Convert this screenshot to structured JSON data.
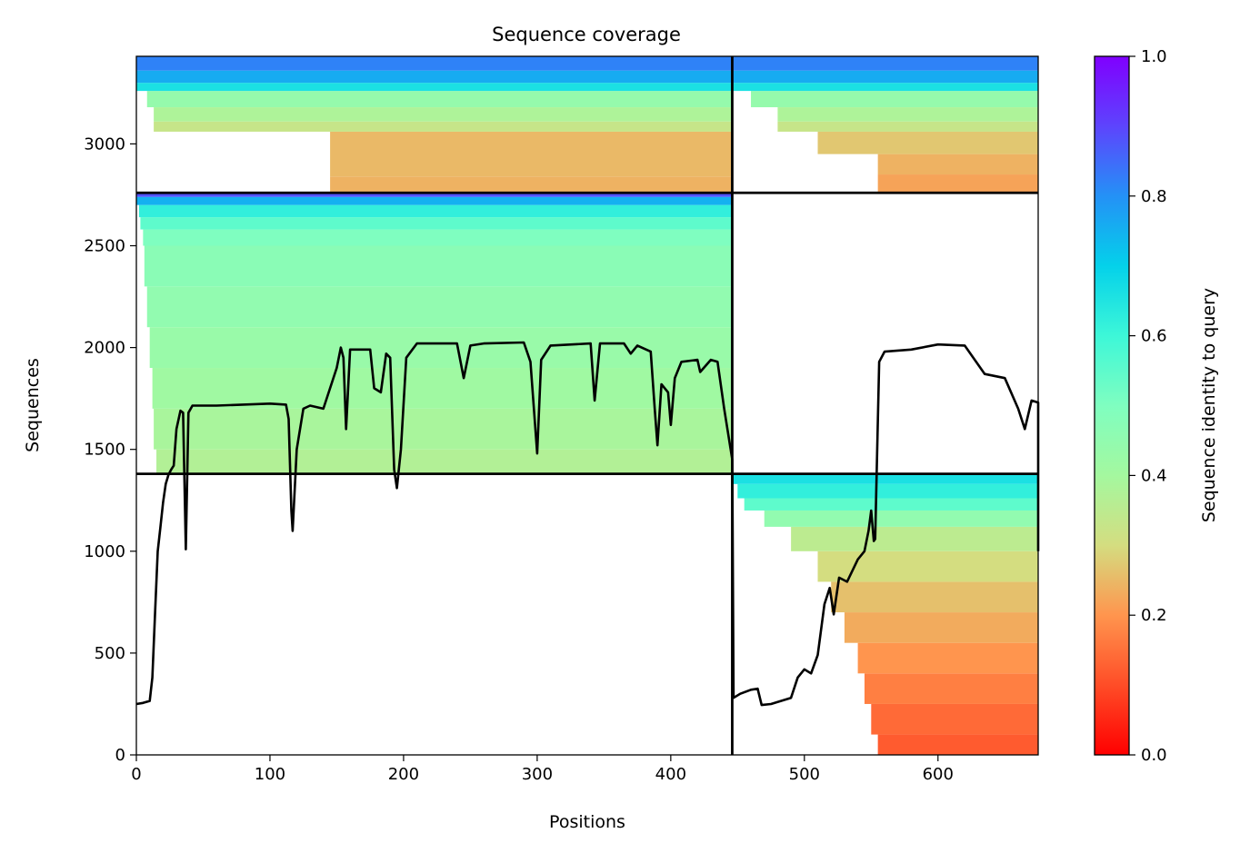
{
  "chart_data": {
    "type": "heatmap",
    "title": "Sequence coverage",
    "xlabel": "Positions",
    "ylabel": "Sequences",
    "colorbar_label": "Sequence identity to query",
    "xlim": [
      0,
      675
    ],
    "ylim": [
      0,
      3430
    ],
    "xticks": [
      0,
      100,
      200,
      300,
      400,
      500,
      600
    ],
    "yticks": [
      0,
      500,
      1000,
      1500,
      2000,
      2500,
      3000
    ],
    "colorbar_range": [
      0.0,
      1.0
    ],
    "colorbar_ticks": [
      "0.0",
      "0.2",
      "0.4",
      "0.6",
      "0.8",
      "1.0"
    ],
    "colormap": "rainbow",
    "chain_boundary_x": 446,
    "row_boundaries_y": [
      1380,
      2760
    ],
    "coverage_blocks": [
      {
        "x": [
          145,
          446
        ],
        "y": [
          2760,
          2840
        ],
        "identity": 0.24
      },
      {
        "x": [
          145,
          446
        ],
        "y": [
          2840,
          3060
        ],
        "identity": 0.25
      },
      {
        "x": [
          13,
          446
        ],
        "y": [
          3060,
          3110
        ],
        "identity": 0.33
      },
      {
        "x": [
          13,
          446
        ],
        "y": [
          3110,
          3180
        ],
        "identity": 0.38
      },
      {
        "x": [
          8,
          446
        ],
        "y": [
          3180,
          3260
        ],
        "identity": 0.44
      },
      {
        "x": 0,
        "y": [
          3260,
          3300
        ],
        "identity": 0.66
      },
      {
        "x": [
          0,
          446
        ],
        "y": [
          3300,
          3360
        ],
        "identity": 0.76
      },
      {
        "x": [
          0,
          446
        ],
        "y": [
          3360,
          3430
        ],
        "identity": 0.82
      },
      {
        "x": [
          555,
          675
        ],
        "y": [
          2760,
          2850
        ],
        "identity": 0.22
      },
      {
        "x": [
          555,
          675
        ],
        "y": [
          2850,
          2950
        ],
        "identity": 0.24
      },
      {
        "x": [
          510,
          675
        ],
        "y": [
          2950,
          3060
        ],
        "identity": 0.27
      },
      {
        "x": [
          480,
          675
        ],
        "y": [
          3060,
          3110
        ],
        "identity": 0.33
      },
      {
        "x": [
          480,
          675
        ],
        "y": [
          3110,
          3180
        ],
        "identity": 0.38
      },
      {
        "x": [
          460,
          675
        ],
        "y": [
          3180,
          3260
        ],
        "identity": 0.44
      },
      {
        "x": [
          446,
          675
        ],
        "y": [
          3260,
          3300
        ],
        "identity": 0.66
      },
      {
        "x": [
          446,
          675
        ],
        "y": [
          3300,
          3360
        ],
        "identity": 0.76
      },
      {
        "x": [
          446,
          675
        ],
        "y": [
          3360,
          3430
        ],
        "identity": 0.82
      },
      {
        "x": [
          15,
          446
        ],
        "y": [
          1380,
          1500
        ],
        "identity": 0.37
      },
      {
        "x": [
          13,
          446
        ],
        "y": [
          1500,
          1700
        ],
        "identity": 0.39
      },
      {
        "x": [
          12,
          446
        ],
        "y": [
          1700,
          1900
        ],
        "identity": 0.41
      },
      {
        "x": [
          10,
          446
        ],
        "y": [
          1900,
          2100
        ],
        "identity": 0.43
      },
      {
        "x": [
          8,
          446
        ],
        "y": [
          2100,
          2300
        ],
        "identity": 0.45
      },
      {
        "x": [
          6,
          446
        ],
        "y": [
          2300,
          2500
        ],
        "identity": 0.47
      },
      {
        "x": [
          5,
          446
        ],
        "y": [
          2500,
          2580
        ],
        "identity": 0.5
      },
      {
        "x": [
          3,
          446
        ],
        "y": [
          2580,
          2640
        ],
        "identity": 0.55
      },
      {
        "x": [
          2,
          446
        ],
        "y": [
          2640,
          2700
        ],
        "identity": 0.62
      },
      {
        "x": [
          0,
          446
        ],
        "y": [
          2700,
          2740
        ],
        "identity": 0.75
      },
      {
        "x": [
          0,
          446
        ],
        "y": [
          2740,
          2760
        ],
        "identity": 0.88
      },
      {
        "x": [
          555,
          675
        ],
        "y": [
          0,
          100
        ],
        "identity": 0.12
      },
      {
        "x": [
          550,
          675
        ],
        "y": [
          100,
          250
        ],
        "identity": 0.14
      },
      {
        "x": [
          545,
          675
        ],
        "y": [
          250,
          400
        ],
        "identity": 0.17
      },
      {
        "x": [
          540,
          675
        ],
        "y": [
          400,
          550
        ],
        "identity": 0.2
      },
      {
        "x": [
          530,
          675
        ],
        "y": [
          550,
          700
        ],
        "identity": 0.23
      },
      {
        "x": [
          520,
          675
        ],
        "y": [
          700,
          850
        ],
        "identity": 0.26
      },
      {
        "x": [
          510,
          675
        ],
        "y": [
          850,
          1000
        ],
        "identity": 0.3
      },
      {
        "x": [
          490,
          675
        ],
        "y": [
          1000,
          1120
        ],
        "identity": 0.35
      },
      {
        "x": [
          470,
          675
        ],
        "y": [
          1120,
          1200
        ],
        "identity": 0.45
      },
      {
        "x": [
          455,
          675
        ],
        "y": [
          1200,
          1260
        ],
        "identity": 0.55
      },
      {
        "x": [
          450,
          675
        ],
        "y": [
          1260,
          1330
        ],
        "identity": 0.62
      },
      {
        "x": [
          446,
          675
        ],
        "y": [
          1330,
          1380
        ],
        "identity": 0.66
      }
    ],
    "coverage_line": [
      [
        0,
        250
      ],
      [
        5,
        255
      ],
      [
        10,
        265
      ],
      [
        12,
        380
      ],
      [
        14,
        700
      ],
      [
        16,
        1000
      ],
      [
        18,
        1120
      ],
      [
        20,
        1240
      ],
      [
        22,
        1330
      ],
      [
        24,
        1375
      ],
      [
        26,
        1400
      ],
      [
        28,
        1420
      ],
      [
        30,
        1600
      ],
      [
        33,
        1690
      ],
      [
        35,
        1680
      ],
      [
        37,
        1010
      ],
      [
        39,
        1680
      ],
      [
        42,
        1715
      ],
      [
        60,
        1715
      ],
      [
        100,
        1725
      ],
      [
        112,
        1720
      ],
      [
        114,
        1650
      ],
      [
        116,
        1200
      ],
      [
        117,
        1100
      ],
      [
        120,
        1500
      ],
      [
        125,
        1700
      ],
      [
        130,
        1715
      ],
      [
        140,
        1700
      ],
      [
        150,
        1900
      ],
      [
        153,
        2000
      ],
      [
        155,
        1950
      ],
      [
        157,
        1600
      ],
      [
        160,
        1990
      ],
      [
        175,
        1990
      ],
      [
        178,
        1800
      ],
      [
        183,
        1780
      ],
      [
        187,
        1970
      ],
      [
        190,
        1950
      ],
      [
        193,
        1400
      ],
      [
        195,
        1310
      ],
      [
        198,
        1500
      ],
      [
        202,
        1950
      ],
      [
        210,
        2020
      ],
      [
        240,
        2020
      ],
      [
        245,
        1850
      ],
      [
        250,
        2010
      ],
      [
        260,
        2020
      ],
      [
        290,
        2025
      ],
      [
        295,
        1930
      ],
      [
        300,
        1480
      ],
      [
        303,
        1940
      ],
      [
        310,
        2010
      ],
      [
        340,
        2020
      ],
      [
        343,
        1740
      ],
      [
        347,
        2020
      ],
      [
        365,
        2020
      ],
      [
        370,
        1970
      ],
      [
        375,
        2010
      ],
      [
        385,
        1980
      ],
      [
        388,
        1700
      ],
      [
        390,
        1520
      ],
      [
        393,
        1820
      ],
      [
        398,
        1780
      ],
      [
        400,
        1620
      ],
      [
        403,
        1850
      ],
      [
        408,
        1930
      ],
      [
        420,
        1940
      ],
      [
        422,
        1880
      ],
      [
        430,
        1940
      ],
      [
        435,
        1930
      ],
      [
        440,
        1700
      ],
      [
        446,
        1450
      ],
      [
        447,
        280
      ],
      [
        452,
        300
      ],
      [
        460,
        320
      ],
      [
        465,
        325
      ],
      [
        468,
        245
      ],
      [
        475,
        250
      ],
      [
        480,
        260
      ],
      [
        490,
        280
      ],
      [
        495,
        380
      ],
      [
        500,
        420
      ],
      [
        505,
        400
      ],
      [
        510,
        490
      ],
      [
        515,
        740
      ],
      [
        519,
        820
      ],
      [
        522,
        690
      ],
      [
        526,
        870
      ],
      [
        532,
        850
      ],
      [
        540,
        960
      ],
      [
        545,
        1000
      ],
      [
        548,
        1100
      ],
      [
        550,
        1200
      ],
      [
        552,
        1050
      ],
      [
        553,
        1060
      ],
      [
        556,
        1930
      ],
      [
        560,
        1980
      ],
      [
        580,
        1990
      ],
      [
        600,
        2015
      ],
      [
        620,
        2010
      ],
      [
        635,
        1870
      ],
      [
        650,
        1850
      ],
      [
        660,
        1700
      ],
      [
        665,
        1600
      ],
      [
        670,
        1740
      ],
      [
        675,
        1730
      ],
      [
        675,
        1000
      ]
    ]
  }
}
